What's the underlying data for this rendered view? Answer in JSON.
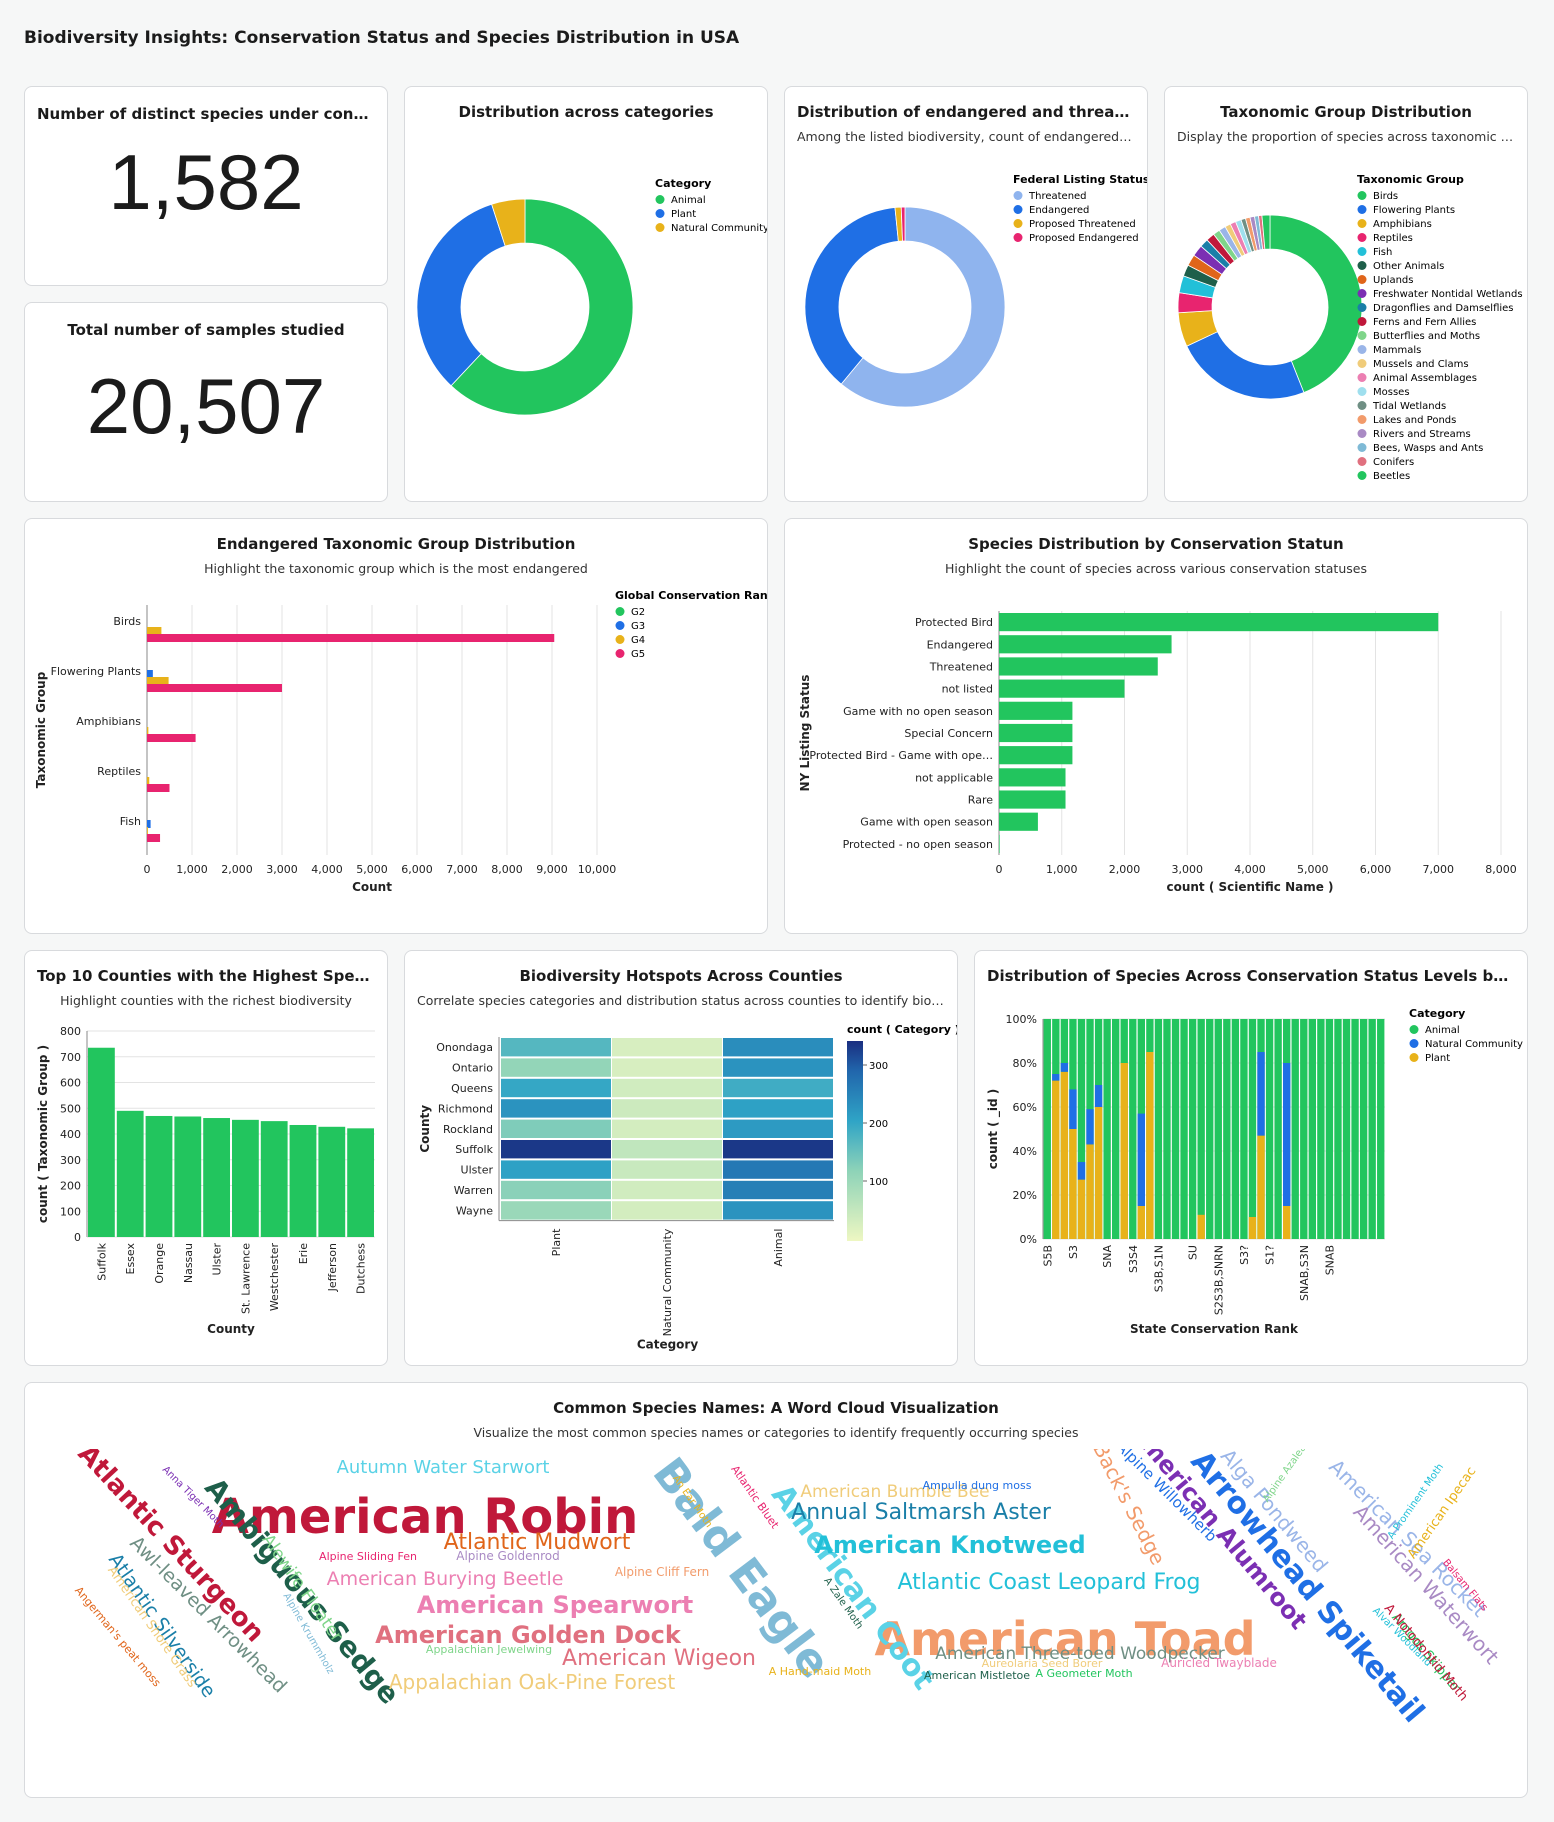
{
  "dashboard_title": "Biodiversity Insights: Conservation Status and Species Distribution in USA",
  "kpi1": {
    "title": "Number of distinct species under consider...",
    "value": "1,582"
  },
  "kpi2": {
    "title": "Total number of samples studied",
    "value": "20,507"
  },
  "colors": {
    "green": "#22c55e",
    "blue": "#1f6fe5",
    "yellow": "#e8b21a",
    "pink": "#e8246f",
    "lightblue": "#8fb4ee"
  },
  "chart_data": [
    {
      "id": "categories",
      "type": "pie",
      "title": "Distribution across categories",
      "legend_title": "Category",
      "labels": [
        "Animal",
        "Plant",
        "Natural Community"
      ],
      "values": [
        62,
        33,
        5
      ],
      "colors": [
        "#22c55e",
        "#1f6fe5",
        "#e8b21a"
      ]
    },
    {
      "id": "federal",
      "type": "pie",
      "title": "Distribution of endangered and threatene...",
      "subtitle": "Among the listed biodiversity, count of endangered a...",
      "legend_title": "Federal Listing Status",
      "labels": [
        "Threatened",
        "Endangered",
        "Proposed Threatened",
        "Proposed Endangered"
      ],
      "values": [
        61,
        37.4,
        1,
        0.6
      ],
      "colors": [
        "#8fb4ee",
        "#1f6fe5",
        "#e8b21a",
        "#e8246f"
      ]
    },
    {
      "id": "taxonomic",
      "type": "pie",
      "title": "Taxonomic Group Distribution",
      "subtitle": "Display the proportion of species across taxonomic g...",
      "legend_title": "Taxonomic Group",
      "labels": [
        "Birds",
        "Flowering Plants",
        "Amphibians",
        "Reptiles",
        "Fish",
        "Other Animals",
        "Uplands",
        "Freshwater Nontidal Wetlands",
        "Dragonflies and Damselflies",
        "Ferns and Fern Allies",
        "Butterflies and Moths",
        "Mammals",
        "Mussels and Clams",
        "Animal Assemblages",
        "Mosses",
        "Tidal Wetlands",
        "Lakes and Ponds",
        "Rivers and Streams",
        "Bees, Wasps and Ants",
        "Conifers",
        "Beetles"
      ],
      "values": [
        44,
        24,
        6,
        3.5,
        3,
        2,
        2,
        2,
        1.5,
        1.5,
        1.2,
        1.2,
        1,
        1,
        1,
        0.8,
        0.8,
        0.8,
        0.7,
        0.6,
        1.4
      ],
      "colors": [
        "#22c55e",
        "#1f6fe5",
        "#e8b21a",
        "#e8246f",
        "#22c0d8",
        "#1e5f4a",
        "#e0651a",
        "#7b2fb3",
        "#1a7fa8",
        "#c0183a",
        "#7fd58a",
        "#9ab5e8",
        "#f0cc7a",
        "#ec7fb2",
        "#9fdfee",
        "#6f8f84",
        "#f29b6b",
        "#a98ac4",
        "#7fbad6",
        "#e0707f",
        "#22c55e"
      ]
    },
    {
      "id": "endangered_tax",
      "type": "bar",
      "orientation": "horizontal",
      "title": "Endangered Taxonomic Group Distribution",
      "subtitle": "Highlight the taxonomic group which is the most endangered",
      "legend_title": "Global Conservation Rank",
      "categories": [
        "Birds",
        "Flowering Plants",
        "Amphibians",
        "Reptiles",
        "Fish"
      ],
      "series": [
        {
          "name": "G2",
          "color": "#22c55e",
          "values": [
            0,
            0,
            0,
            0,
            0
          ]
        },
        {
          "name": "G3",
          "color": "#1f6fe5",
          "values": [
            0,
            130,
            0,
            0,
            80
          ]
        },
        {
          "name": "G4",
          "color": "#e8b21a",
          "values": [
            320,
            480,
            30,
            50,
            20
          ]
        },
        {
          "name": "G5",
          "color": "#e8246f",
          "values": [
            9050,
            3000,
            1080,
            500,
            290
          ]
        }
      ],
      "xlabel": "Count",
      "ylabel": "Taxonomic Group",
      "xlim": [
        0,
        10000
      ],
      "xticks": [
        "0",
        "1,000",
        "2,000",
        "3,000",
        "4,000",
        "5,000",
        "6,000",
        "7,000",
        "8,000",
        "9,000",
        "10,000"
      ]
    },
    {
      "id": "ny_status",
      "type": "bar",
      "orientation": "horizontal",
      "title": "Species Distribution by Conservation Statun",
      "subtitle": "Highlight the count of species across various conservation statuses",
      "categories": [
        "Protected Bird",
        "Endangered",
        "Threatened",
        "not listed",
        "Game with no open season",
        "Special Concern",
        "Protected Bird - Game with ope…",
        "not applicable",
        "Rare",
        "Game with open season",
        "Protected - no open season"
      ],
      "values": [
        7000,
        2750,
        2530,
        2000,
        1170,
        1170,
        1170,
        1060,
        1060,
        620,
        10
      ],
      "xlabel": "count ( Scientific Name )",
      "ylabel": "NY Listing Status",
      "xlim": [
        0,
        8000
      ],
      "xticks": [
        "0",
        "1,000",
        "2,000",
        "3,000",
        "4,000",
        "5,000",
        "6,000",
        "7,000",
        "8,000"
      ]
    },
    {
      "id": "counties",
      "type": "bar",
      "title": "Top 10 Counties with the Highest Species ...",
      "subtitle": "Highlight counties with the richest biodiversity",
      "categories": [
        "Suffolk",
        "Essex",
        "Orange",
        "Nassau",
        "Ulster",
        "St. Lawrence",
        "Westchester",
        "Erie",
        "Jefferson",
        "Dutchess"
      ],
      "values": [
        735,
        490,
        470,
        468,
        462,
        455,
        450,
        435,
        428,
        422
      ],
      "xlabel": "County",
      "ylabel": "count ( Taxonomic Group )",
      "ylim": [
        0,
        800
      ],
      "yticks": [
        "0",
        "100",
        "200",
        "300",
        "400",
        "500",
        "600",
        "700",
        "800"
      ]
    },
    {
      "id": "hotspots",
      "type": "heatmap",
      "title": "Biodiversity Hotspots Across Counties",
      "subtitle": "Correlate species categories and distribution status across counties to identify biodi...",
      "rows": [
        "Onondaga",
        "Ontario",
        "Queens",
        "Richmond",
        "Rockland",
        "Suffolk",
        "Ulster",
        "Warren",
        "Wayne"
      ],
      "columns": [
        "Plant",
        "Natural Community",
        "Animal"
      ],
      "values": [
        [
          180,
          30,
          250
        ],
        [
          120,
          30,
          240
        ],
        [
          210,
          40,
          200
        ],
        [
          240,
          45,
          220
        ],
        [
          140,
          35,
          230
        ],
        [
          350,
          60,
          350
        ],
        [
          220,
          50,
          280
        ],
        [
          130,
          40,
          270
        ],
        [
          110,
          35,
          240
        ]
      ],
      "legend_title": "count ( Category )",
      "legend_ticks": [
        "300",
        "200",
        "100"
      ],
      "xlabel": "Category",
      "ylabel": "County"
    },
    {
      "id": "state_rank",
      "type": "bar",
      "stacked": "normalized",
      "title": "Distribution of Species Across Conservation Status Levels by State",
      "legend_title": "Category",
      "legend": [
        "Animal",
        "Natural Community",
        "Plant"
      ],
      "xlabel": "State Conservation Rank",
      "ylabel": "count ( _id )",
      "yticks": [
        "0%",
        "20%",
        "40%",
        "60%",
        "80%",
        "100%"
      ],
      "xtick_labels": [
        "S5B",
        "S3",
        "SNA",
        "S3S4",
        "S3B,S1N",
        "SU",
        "S2S3B,SNRN",
        "S3?",
        "S1?",
        "SNAB,S3N",
        "SNAB"
      ],
      "special_bars": [
        {
          "index": 1,
          "plant": 0.72,
          "natcom": 0.03
        },
        {
          "index": 2,
          "plant": 0.76,
          "natcom": 0.04
        },
        {
          "index": 3,
          "plant": 0.5,
          "natcom": 0.18
        },
        {
          "index": 4,
          "plant": 0.27,
          "natcom": 0.08
        },
        {
          "index": 5,
          "plant": 0.43,
          "natcom": 0.16
        },
        {
          "index": 6,
          "plant": 0.6,
          "natcom": 0.1
        },
        {
          "index": 9,
          "plant": 0.8,
          "natcom": 0
        },
        {
          "index": 11,
          "plant": 0.15,
          "natcom": 0.42
        },
        {
          "index": 12,
          "plant": 0.85,
          "natcom": 0
        },
        {
          "index": 18,
          "plant": 0.11,
          "natcom": 0
        },
        {
          "index": 24,
          "plant": 0.1,
          "natcom": 0
        },
        {
          "index": 25,
          "plant": 0.47,
          "natcom": 0.38
        },
        {
          "index": 28,
          "plant": 0.15,
          "natcom": 0.65
        }
      ]
    },
    {
      "id": "wordcloud",
      "type": "table",
      "title": "Common Species Names: A Word Cloud Visualization",
      "subtitle": "Visualize the most common species names or categories to identify frequently occurring species",
      "words": [
        {
          "text": "American Robin",
          "color": "#c0183a"
        },
        {
          "text": "American Toad",
          "color": "#f29b6b"
        },
        {
          "text": "Bald Eagle",
          "color": "#7fbad6"
        },
        {
          "text": "Arrowhead Spiketail",
          "color": "#1f6fe5"
        },
        {
          "text": "American Coot",
          "color": "#5ad2e6"
        },
        {
          "text": "Ambiguous Sedge",
          "color": "#1e5f4a"
        },
        {
          "text": "Atlantic Sturgeon",
          "color": "#c0183a"
        },
        {
          "text": "American Alumroot",
          "color": "#7b2fb3"
        },
        {
          "text": "Autumn Water Starwort",
          "color": "#5ad2e6"
        },
        {
          "text": "Atlantic Mudwort",
          "color": "#e0651a"
        },
        {
          "text": "Annual Saltmarsh Aster",
          "color": "#1a7fa8"
        },
        {
          "text": "American Knotweed",
          "color": "#22c0d8"
        },
        {
          "text": "Atlantic Coast Leopard Frog",
          "color": "#22c0d8"
        },
        {
          "text": "American Spearwort",
          "color": "#ec7fb2"
        },
        {
          "text": "American Golden Dock",
          "color": "#e0707f"
        },
        {
          "text": "American Wigeon",
          "color": "#e0707f"
        },
        {
          "text": "Appalachian Oak-Pine Forest",
          "color": "#f0cc7a"
        },
        {
          "text": "American Burying Beetle",
          "color": "#ec7fb2"
        },
        {
          "text": "American Three-toed Woodpecker",
          "color": "#6f8f84"
        },
        {
          "text": "American Bumble Bee",
          "color": "#f0cc7a"
        },
        {
          "text": "Back's Sedge",
          "color": "#f29b6b"
        },
        {
          "text": "Alpine Willowherb",
          "color": "#1f6fe5"
        },
        {
          "text": "Alga Pondweed",
          "color": "#9ab5e8"
        },
        {
          "text": "American Sea Rocket",
          "color": "#9ab5e8"
        },
        {
          "text": "American Waterwort",
          "color": "#a98ac4"
        },
        {
          "text": "Awl-leaved Arrowhead",
          "color": "#6f8f84"
        },
        {
          "text": "Atlantic Silverside",
          "color": "#1a7fa8"
        },
        {
          "text": "Alewife Floater",
          "color": "#7fd58a"
        },
        {
          "text": "American Shore Grass",
          "color": "#f0cc7a"
        },
        {
          "text": "Angerman's peat moss",
          "color": "#e0651a"
        },
        {
          "text": "Alpine Krummholz",
          "color": "#7fbad6"
        },
        {
          "text": "Appalachian Jewelwing",
          "color": "#7fd58a"
        },
        {
          "text": "Alpine Sliding Fen",
          "color": "#e8246f"
        },
        {
          "text": "Alpine Goldenrod",
          "color": "#a98ac4"
        },
        {
          "text": "Alpine Cliff Fern",
          "color": "#f29b6b"
        },
        {
          "text": "Anna Tiger Moth",
          "color": "#7b2fb3"
        },
        {
          "text": "An Ear Moth",
          "color": "#e8b21a"
        },
        {
          "text": "Atlantic Bluet",
          "color": "#e8246f"
        },
        {
          "text": "Ampulla dung moss",
          "color": "#1f6fe5"
        },
        {
          "text": "A Zale Moth",
          "color": "#1e5f4a"
        },
        {
          "text": "A Hand-maid Moth",
          "color": "#e8b21a"
        },
        {
          "text": "Aureolaria Seed Borer",
          "color": "#f0cc7a"
        },
        {
          "text": "Auricled Twayblade",
          "color": "#ec7fb2"
        },
        {
          "text": "American Mistletoe",
          "color": "#1e5f4a"
        },
        {
          "text": "A Geometer Moth",
          "color": "#22c55e"
        },
        {
          "text": "Alpine Azalea",
          "color": "#7fd58a"
        },
        {
          "text": "A Prominent Moth",
          "color": "#22c0d8"
        },
        {
          "text": "American Ipecac",
          "color": "#e8b21a"
        },
        {
          "text": "Balsam Flats",
          "color": "#e8246f"
        },
        {
          "text": "Alvar Woodland",
          "color": "#22c0d8"
        },
        {
          "text": "Arogos Skipper",
          "color": "#22c55e"
        },
        {
          "text": "A Notodontid Moth",
          "color": "#c0183a"
        }
      ]
    }
  ]
}
